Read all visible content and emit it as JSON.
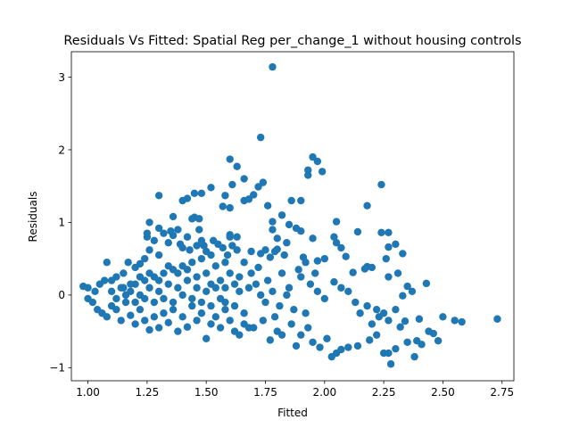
{
  "chart_data": {
    "type": "scatter",
    "title": "Residuals Vs Fitted: Spatial Reg per_change_1 without housing controls",
    "xlabel": "Fitted",
    "ylabel": "Residuals",
    "xlim": [
      0.93,
      2.8
    ],
    "ylim": [
      -1.18,
      3.35
    ],
    "xticks": [
      1.0,
      1.25,
      1.5,
      1.75,
      2.0,
      2.25,
      2.5,
      2.75
    ],
    "xtick_labels": [
      "1.00",
      "1.25",
      "1.50",
      "1.75",
      "2.00",
      "2.25",
      "2.50",
      "2.75"
    ],
    "yticks": [
      -1,
      0,
      1,
      2,
      3
    ],
    "ytick_labels": [
      "−1",
      "0",
      "1",
      "2",
      "3"
    ],
    "grid": false,
    "marker_color": "#1f77b4",
    "series": [
      {
        "points": [
          [
            1.78,
            3.14
          ],
          [
            1.73,
            2.17
          ],
          [
            1.95,
            1.9
          ],
          [
            1.97,
            1.84
          ],
          [
            1.6,
            1.87
          ],
          [
            1.93,
            1.72
          ],
          [
            1.99,
            1.7
          ],
          [
            1.74,
            1.55
          ],
          [
            1.63,
            1.77
          ],
          [
            1.66,
            1.6
          ],
          [
            1.93,
            1.65
          ],
          [
            2.24,
            1.52
          ],
          [
            1.7,
            1.38
          ],
          [
            1.72,
            1.49
          ],
          [
            1.45,
            1.4
          ],
          [
            1.52,
            1.48
          ],
          [
            1.61,
            1.52
          ],
          [
            1.3,
            1.37
          ],
          [
            1.58,
            1.37
          ],
          [
            1.57,
            1.22
          ],
          [
            1.6,
            1.2
          ],
          [
            1.66,
            1.3
          ],
          [
            1.68,
            1.32
          ],
          [
            1.76,
            1.23
          ],
          [
            1.9,
            1.3
          ],
          [
            1.86,
            1.3
          ],
          [
            1.82,
            1.1
          ],
          [
            2.18,
            1.23
          ],
          [
            1.4,
            1.3
          ],
          [
            1.42,
            1.33
          ],
          [
            1.48,
            1.4
          ],
          [
            1.44,
            1.05
          ],
          [
            1.45,
            1.07
          ],
          [
            1.47,
            1.05
          ],
          [
            1.36,
            1.08
          ],
          [
            1.26,
            1.0
          ],
          [
            1.78,
            1.01
          ],
          [
            1.85,
            0.97
          ],
          [
            2.05,
            1.01
          ],
          [
            1.9,
            0.88
          ],
          [
            1.88,
            0.92
          ],
          [
            1.78,
            0.9
          ],
          [
            1.63,
            0.8
          ],
          [
            1.6,
            0.83
          ],
          [
            1.8,
            0.78
          ],
          [
            1.95,
            0.78
          ],
          [
            2.04,
            0.8
          ],
          [
            2.14,
            0.87
          ],
          [
            2.24,
            0.86
          ],
          [
            2.27,
            0.86
          ],
          [
            2.27,
            0.66
          ],
          [
            2.3,
            0.7
          ],
          [
            2.33,
            0.57
          ],
          [
            2.05,
            0.72
          ],
          [
            1.84,
            0.72
          ],
          [
            1.69,
            0.6
          ],
          [
            1.73,
            0.57
          ],
          [
            1.75,
            0.62
          ],
          [
            1.79,
            0.6
          ],
          [
            1.77,
            0.52
          ],
          [
            1.8,
            0.63
          ],
          [
            1.83,
            0.55
          ],
          [
            1.91,
            0.52
          ],
          [
            1.97,
            0.47
          ],
          [
            2.0,
            0.5
          ],
          [
            2.07,
            0.65
          ],
          [
            2.09,
            0.53
          ],
          [
            2.12,
            0.31
          ],
          [
            2.17,
            0.36
          ],
          [
            2.18,
            0.39
          ],
          [
            2.2,
            0.38
          ],
          [
            2.26,
            0.5
          ],
          [
            2.31,
            0.3
          ],
          [
            2.27,
            0.25
          ],
          [
            2.35,
            0.12
          ],
          [
            2.43,
            0.16
          ],
          [
            2.37,
            0.05
          ],
          [
            2.33,
            -0.01
          ],
          [
            2.3,
            -0.2
          ],
          [
            2.25,
            -0.25
          ],
          [
            2.23,
            -0.3
          ],
          [
            2.2,
            -0.4
          ],
          [
            2.22,
            -0.55
          ],
          [
            2.19,
            -0.62
          ],
          [
            2.14,
            -0.7
          ],
          [
            2.1,
            -0.72
          ],
          [
            2.07,
            -0.75
          ],
          [
            2.05,
            -0.8
          ],
          [
            2.03,
            -0.85
          ],
          [
            1.98,
            -0.72
          ],
          [
            1.95,
            -0.65
          ],
          [
            2.01,
            -0.6
          ],
          [
            1.9,
            -0.55
          ],
          [
            1.93,
            -0.45
          ],
          [
            1.86,
            -0.4
          ],
          [
            1.88,
            -0.7
          ],
          [
            1.82,
            -0.55
          ],
          [
            1.8,
            -0.5
          ],
          [
            1.77,
            -0.62
          ],
          [
            2.25,
            -0.8
          ],
          [
            2.28,
            -0.95
          ],
          [
            2.27,
            -0.8
          ],
          [
            2.3,
            -0.74
          ],
          [
            2.35,
            -0.65
          ],
          [
            2.38,
            -0.85
          ],
          [
            2.39,
            -0.63
          ],
          [
            2.41,
            -0.68
          ],
          [
            2.44,
            -0.5
          ],
          [
            2.46,
            -0.53
          ],
          [
            2.48,
            -0.63
          ],
          [
            2.5,
            -0.3
          ],
          [
            2.55,
            -0.35
          ],
          [
            2.58,
            -0.37
          ],
          [
            2.73,
            -0.33
          ],
          [
            2.4,
            -0.33
          ],
          [
            2.34,
            -0.36
          ],
          [
            2.32,
            -0.44
          ],
          [
            2.27,
            -0.35
          ],
          [
            2.22,
            -0.2
          ],
          [
            2.18,
            -0.15
          ],
          [
            2.15,
            -0.25
          ],
          [
            2.13,
            -0.1
          ],
          [
            2.1,
            0.05
          ],
          [
            2.07,
            0.1
          ],
          [
            2.04,
            0.18
          ],
          [
            2.0,
            -0.05
          ],
          [
            1.97,
            0.05
          ],
          [
            1.94,
            0.15
          ],
          [
            1.92,
            -0.25
          ],
          [
            1.9,
            0.25
          ],
          [
            1.85,
            0.1
          ],
          [
            1.82,
            0.3
          ],
          [
            1.79,
            -0.3
          ],
          [
            1.76,
            0.2
          ],
          [
            1.74,
            -0.35
          ],
          [
            1.72,
            0.38
          ],
          [
            1.7,
            -0.45
          ],
          [
            1.68,
            0.1
          ],
          [
            1.66,
            -0.25
          ],
          [
            1.64,
            0.05
          ],
          [
            1.62,
            -0.15
          ],
          [
            1.6,
            0.8
          ],
          [
            1.58,
            0.45
          ],
          [
            1.55,
            0.7
          ],
          [
            1.52,
            0.55
          ],
          [
            1.5,
            0.6
          ],
          [
            1.48,
            0.75
          ],
          [
            1.46,
            0.68
          ],
          [
            1.42,
            0.8
          ],
          [
            1.4,
            0.65
          ],
          [
            1.38,
            0.9
          ],
          [
            1.36,
            0.82
          ],
          [
            1.34,
            0.72
          ],
          [
            1.32,
            0.85
          ],
          [
            1.3,
            0.55
          ],
          [
            1.28,
            0.75
          ],
          [
            1.26,
            0.62
          ],
          [
            1.24,
            0.5
          ],
          [
            1.22,
            0.43
          ],
          [
            1.2,
            0.38
          ],
          [
            1.17,
            0.45
          ],
          [
            1.15,
            0.3
          ],
          [
            1.12,
            0.25
          ],
          [
            1.1,
            0.2
          ],
          [
            1.08,
            0.45
          ],
          [
            1.07,
            0.2
          ],
          [
            1.05,
            0.15
          ],
          [
            1.03,
            0.05
          ],
          [
            1.0,
            0.1
          ],
          [
            0.98,
            0.12
          ],
          [
            1.0,
            -0.05
          ],
          [
            1.02,
            -0.1
          ],
          [
            1.04,
            -0.2
          ],
          [
            1.06,
            -0.25
          ],
          [
            1.08,
            -0.3
          ],
          [
            1.1,
            -0.15
          ],
          [
            1.12,
            -0.2
          ],
          [
            1.14,
            -0.35
          ],
          [
            1.16,
            -0.1
          ],
          [
            1.18,
            -0.28
          ],
          [
            1.2,
            -0.4
          ],
          [
            1.22,
            -0.2
          ],
          [
            1.24,
            -0.35
          ],
          [
            1.26,
            -0.48
          ],
          [
            1.28,
            -0.3
          ],
          [
            1.3,
            -0.45
          ],
          [
            1.32,
            -0.25
          ],
          [
            1.34,
            -0.38
          ],
          [
            1.36,
            -0.2
          ],
          [
            1.38,
            -0.5
          ],
          [
            1.4,
            -0.3
          ],
          [
            1.42,
            -0.44
          ],
          [
            1.44,
            -0.15
          ],
          [
            1.46,
            -0.35
          ],
          [
            1.48,
            -0.25
          ],
          [
            1.5,
            -0.6
          ],
          [
            1.52,
            -0.4
          ],
          [
            1.54,
            -0.3
          ],
          [
            1.56,
            -0.45
          ],
          [
            1.58,
            -0.2
          ],
          [
            1.6,
            -0.35
          ],
          [
            1.62,
            -0.5
          ],
          [
            1.64,
            -0.55
          ],
          [
            1.66,
            -0.4
          ],
          [
            1.68,
            -0.45
          ],
          [
            1.15,
            0.1
          ],
          [
            1.18,
            0.05
          ],
          [
            1.2,
            0.15
          ],
          [
            1.22,
            0.0
          ],
          [
            1.24,
            0.2
          ],
          [
            1.26,
            0.1
          ],
          [
            1.28,
            0.25
          ],
          [
            1.3,
            0.05
          ],
          [
            1.32,
            0.3
          ],
          [
            1.34,
            0.15
          ],
          [
            1.36,
            0.35
          ],
          [
            1.38,
            0.1
          ],
          [
            1.4,
            0.4
          ],
          [
            1.42,
            0.2
          ],
          [
            1.44,
            0.45
          ],
          [
            1.46,
            0.25
          ],
          [
            1.48,
            0.5
          ],
          [
            1.5,
            0.3
          ],
          [
            1.52,
            0.15
          ],
          [
            1.54,
            0.4
          ],
          [
            1.56,
            0.2
          ],
          [
            1.58,
            0.1
          ],
          [
            1.6,
            0.3
          ],
          [
            1.62,
            0.15
          ],
          [
            1.64,
            0.25
          ],
          [
            1.1,
            0.05
          ],
          [
            1.12,
            -0.05
          ],
          [
            1.14,
            0.1
          ],
          [
            1.16,
            0.0
          ],
          [
            1.18,
            0.15
          ],
          [
            1.2,
            -0.1
          ],
          [
            1.22,
            0.25
          ],
          [
            1.24,
            -0.05
          ],
          [
            1.26,
            0.3
          ],
          [
            1.28,
            -0.1
          ],
          [
            1.3,
            0.2
          ],
          [
            1.32,
            -0.05
          ],
          [
            1.34,
            0.4
          ],
          [
            1.36,
            -0.1
          ],
          [
            1.38,
            0.3
          ],
          [
            1.4,
            0.0
          ],
          [
            1.42,
            0.35
          ],
          [
            1.44,
            -0.05
          ],
          [
            1.46,
            0.1
          ],
          [
            1.48,
            -0.1
          ],
          [
            1.5,
            0.05
          ],
          [
            1.52,
            -0.15
          ],
          [
            1.54,
            0.1
          ],
          [
            1.56,
            -0.05
          ],
          [
            1.58,
            -0.1
          ],
          [
            1.25,
            0.8
          ],
          [
            1.25,
            0.85
          ],
          [
            1.3,
            0.92
          ],
          [
            1.35,
            0.88
          ],
          [
            1.39,
            0.7
          ],
          [
            1.43,
            0.62
          ],
          [
            1.47,
            0.9
          ],
          [
            1.49,
            0.68
          ],
          [
            1.53,
            0.75
          ],
          [
            1.57,
            0.65
          ],
          [
            1.59,
            0.55
          ],
          [
            1.61,
            0.68
          ],
          [
            1.63,
            0.62
          ],
          [
            1.66,
            0.45
          ],
          [
            1.69,
            0.3
          ],
          [
            1.71,
            0.15
          ],
          [
            1.73,
            0.0
          ],
          [
            1.75,
            -0.1
          ],
          [
            1.78,
            0.05
          ],
          [
            1.81,
            -0.15
          ],
          [
            1.84,
            0.0
          ],
          [
            1.87,
            -0.2
          ],
          [
            1.89,
            0.35
          ],
          [
            1.92,
            0.45
          ],
          [
            1.96,
            0.3
          ]
        ]
      }
    ]
  }
}
